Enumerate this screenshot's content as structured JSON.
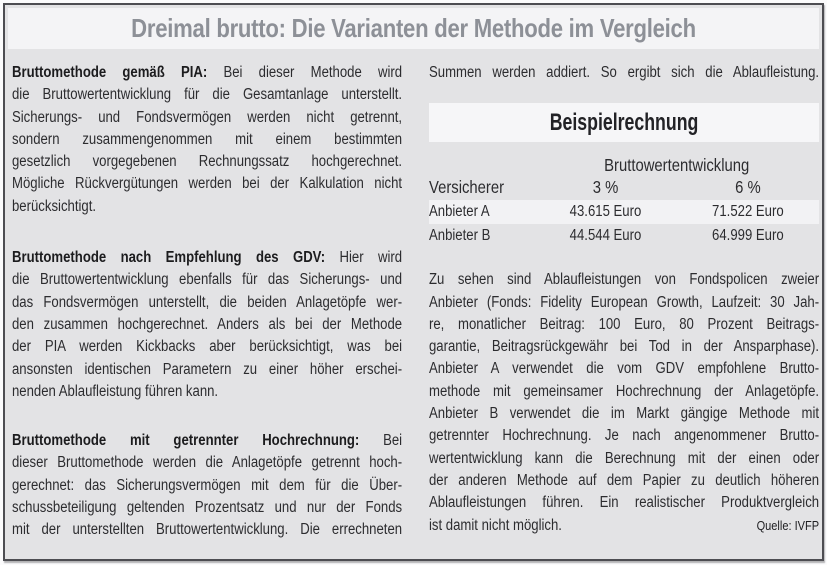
{
  "header": {
    "title": "Dreimal brutto: Die Varianten der Methode im Vergleich"
  },
  "colors": {
    "panel_bg": "#e3e3e5",
    "bar_bg": "#f4f4f6",
    "title_text": "#8d9097",
    "highlight_row_bg": "#f2f2f4"
  },
  "left_column": {
    "paragraphs": [
      {
        "lead": "Bruttomethode gemäß PIA:",
        "lines": [
          "Bei dieser Methode wird",
          "die Bruttowertentwicklung für die Gesamtanlage unterstellt.",
          "Sicherungs- und Fondsvermögen werden nicht getrennt,",
          "sondern zusammengenommen mit einem bestimmten",
          "gesetzlich vorgegebenen Rechnungssatz hochgerechnet.",
          "Mögliche Rückvergütungen werden bei der Kalkulation nicht",
          "berücksichtigt."
        ]
      },
      {
        "lead": "Bruttomethode nach Empfehlung des GDV:",
        "lines": [
          "Hier wird",
          "die Bruttowertentwicklung ebenfalls für das Sicherungs- und",
          "das Fondsvermögen unterstellt, die beiden Anlagetöpfe wer-",
          "den zusammen hochgerechnet. Anders als bei der Methode",
          "der PIA werden Kickbacks aber berücksichtigt, was bei",
          "ansonsten identischen Parametern zu einer höher erschei-",
          "nenden Ablaufleistung führen kann."
        ]
      },
      {
        "lead": "Bruttomethode mit getrennter Hochrechnung:",
        "lines": [
          "Bei",
          "dieser Bruttomethode werden die Anlagetöpfe getrennt hoch-",
          "gerechnet: das Sicherungsvermögen mit dem für die Über-",
          "schussbeteiligung geltenden Prozentsatz und nur der Fonds",
          "mit der unterstellten Bruttowertentwicklung. Die errechneten"
        ]
      }
    ]
  },
  "right_column": {
    "intro_line": "Summen werden addiert. So ergibt sich die Ablaufleistung.",
    "table": {
      "title": "Beispielrechnung",
      "group_header": "Bruttowertentwicklung",
      "columns": [
        "Versicherer",
        "3 %",
        "6 %"
      ],
      "rows": [
        {
          "label": "Anbieter A",
          "v3": "43.615 Euro",
          "v6": "71.522 Euro"
        },
        {
          "label": "Anbieter B",
          "v3": "44.544 Euro",
          "v6": "64.999 Euro"
        }
      ]
    },
    "body_lines": [
      "Zu sehen sind Ablaufleistungen von Fondspolicen zweier",
      "Anbieter (Fonds: Fidelity European Growth, Laufzeit: 30 Jah-",
      "re, monatlicher Beitrag: 100 Euro, 80 Prozent Beitrags-",
      "garantie, Beitragsrückgewähr bei Tod in der Ansparphase).",
      "Anbieter A verwendet die vom GDV empfohlene Brutto-",
      "methode mit gemeinsamer Hochrechnung der Anlagetöpfe.",
      "Anbieter B verwendet die im Markt gängige Methode mit",
      "getrennter Hochrechnung. Je nach angenommener Brutto-",
      "wertentwicklung kann die Berechnung mit der einen oder",
      "der anderen Methode auf dem Papier zu deutlich höheren",
      "Ablaufleistungen führen. Ein realistischer Produktvergleich"
    ],
    "last_line": "ist damit nicht möglich.",
    "source": "Quelle: IVFP"
  }
}
